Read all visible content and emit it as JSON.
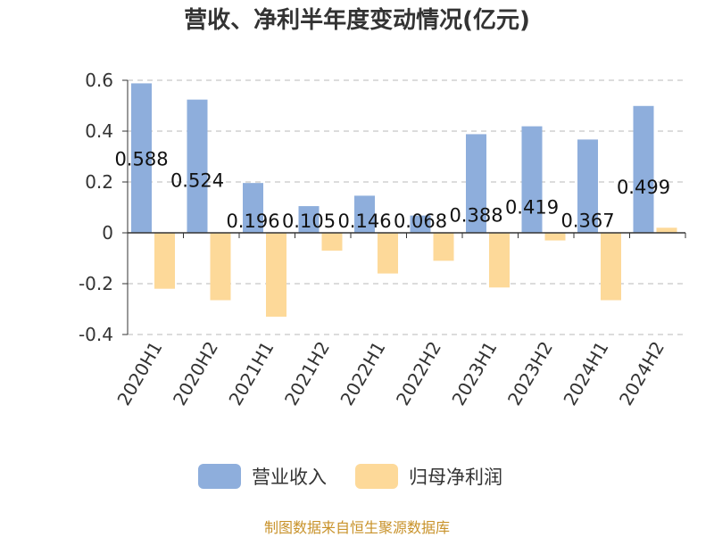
{
  "chart_data": {
    "type": "bar",
    "title": "营收、净利半年度变动情况(亿元)",
    "categories": [
      "2020H1",
      "2020H2",
      "2021H1",
      "2021H2",
      "2022H1",
      "2022H2",
      "2023H1",
      "2023H2",
      "2024H1",
      "2024H2"
    ],
    "series": [
      {
        "name": "营业收入",
        "color": "#8eaedc",
        "values": [
          0.588,
          0.524,
          0.196,
          0.105,
          0.146,
          0.068,
          0.388,
          0.419,
          0.367,
          0.499
        ],
        "labels": [
          "0.588",
          "0.524",
          "0.196",
          "0.105",
          "0.146",
          "0.068",
          "0.388",
          "0.419",
          "0.367",
          "0.499"
        ]
      },
      {
        "name": "归母净利润",
        "color": "#fdd999",
        "values": [
          -0.22,
          -0.265,
          -0.33,
          -0.07,
          -0.16,
          -0.11,
          -0.215,
          -0.03,
          -0.265,
          0.02
        ]
      }
    ],
    "ylim": [
      -0.4,
      0.6
    ],
    "yticks": [
      "0.6",
      "0.4",
      "0.2",
      "0",
      "-0.2",
      "-0.4"
    ],
    "ytick_values": [
      0.6,
      0.4,
      0.2,
      0,
      -0.2,
      -0.4
    ],
    "grid": true,
    "legend": "bottom"
  },
  "footer": "制图数据来自恒生聚源数据库"
}
